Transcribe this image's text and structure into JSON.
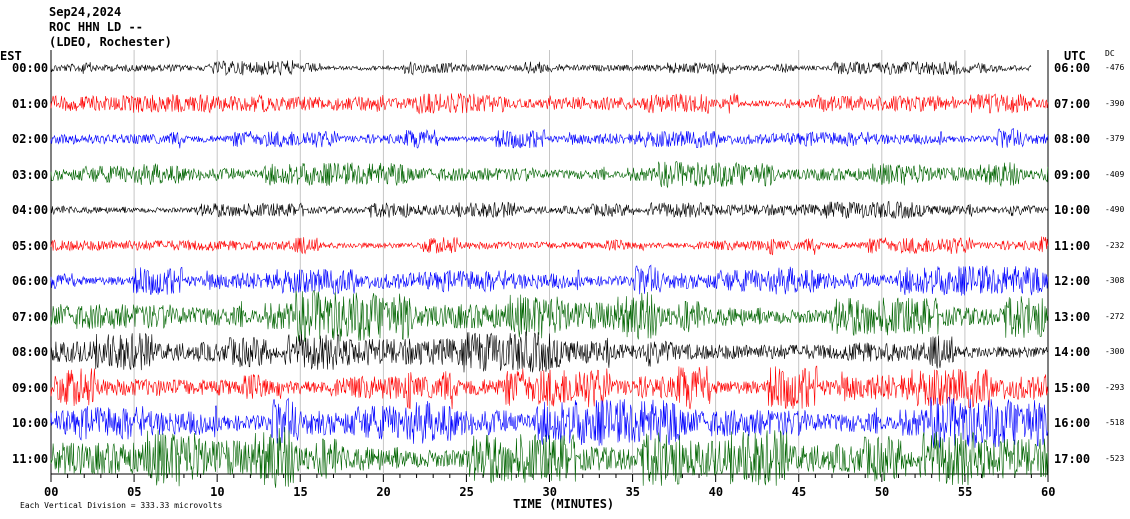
{
  "header": {
    "date": "Sep24,2024",
    "station": "ROC HHN LD --",
    "network": "(LDEO, Rochester)"
  },
  "axis_labels": {
    "left": "EST",
    "right": "UTC",
    "dc": "DC",
    "x": "TIME (MINUTES)"
  },
  "footer": {
    "scale": "Each Vertical Division =  333.33 microvolts"
  },
  "chart_data": {
    "type": "line",
    "title": "",
    "xlabel": "TIME (MINUTES)",
    "xlim": [
      0,
      60
    ],
    "x_ticks": [
      "00",
      "05",
      "10",
      "15",
      "20",
      "25",
      "30",
      "35",
      "40",
      "45",
      "50",
      "55",
      "60"
    ],
    "grid": true,
    "trace_colors": [
      "#000000",
      "#ff0000",
      "#0000ff",
      "#006400"
    ],
    "rows": [
      {
        "est": "00:00",
        "utc": "06:00",
        "dc": "-476",
        "color": "#000000",
        "amplitude": 0.22,
        "end_minute": 59
      },
      {
        "est": "01:00",
        "utc": "07:00",
        "dc": "-390",
        "color": "#ff0000",
        "amplitude": 0.3,
        "end_minute": 60
      },
      {
        "est": "02:00",
        "utc": "08:00",
        "dc": "-379",
        "color": "#0000ff",
        "amplitude": 0.3,
        "end_minute": 60
      },
      {
        "est": "03:00",
        "utc": "09:00",
        "dc": "-409",
        "color": "#006400",
        "amplitude": 0.35,
        "end_minute": 60
      },
      {
        "est": "04:00",
        "utc": "10:00",
        "dc": "-490",
        "color": "#000000",
        "amplitude": 0.25,
        "end_minute": 60
      },
      {
        "est": "05:00",
        "utc": "11:00",
        "dc": "-232",
        "color": "#ff0000",
        "amplitude": 0.3,
        "end_minute": 60
      },
      {
        "est": "06:00",
        "utc": "12:00",
        "dc": "-308",
        "color": "#0000ff",
        "amplitude": 0.45,
        "end_minute": 60
      },
      {
        "est": "07:00",
        "utc": "13:00",
        "dc": "-272",
        "color": "#006400",
        "amplitude": 0.7,
        "end_minute": 60
      },
      {
        "est": "08:00",
        "utc": "14:00",
        "dc": "-300",
        "color": "#000000",
        "amplitude": 0.6,
        "end_minute": 60
      },
      {
        "est": "09:00",
        "utc": "15:00",
        "dc": "-293",
        "color": "#ff0000",
        "amplitude": 0.7,
        "end_minute": 60
      },
      {
        "est": "10:00",
        "utc": "16:00",
        "dc": "-518",
        "color": "#0000ff",
        "amplitude": 0.7,
        "end_minute": 60
      },
      {
        "est": "11:00",
        "utc": "17:00",
        "dc": "-523",
        "color": "#006400",
        "amplitude": 0.9,
        "end_minute": 60
      }
    ]
  }
}
